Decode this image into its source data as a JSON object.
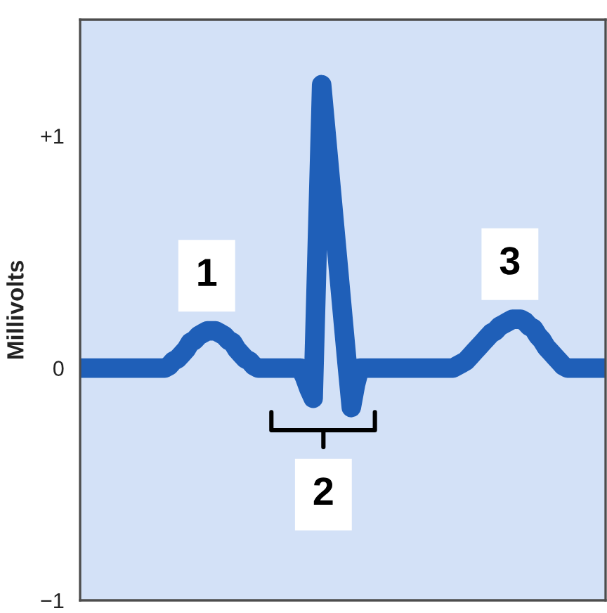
{
  "chart_data": {
    "type": "line",
    "ylabel": "Millivolts",
    "categories": [
      null,
      null,
      null,
      null,
      null,
      null,
      null,
      null,
      null,
      null,
      null,
      null,
      null,
      null,
      null,
      null,
      null,
      null,
      null,
      null,
      null,
      null,
      null,
      null,
      null,
      null,
      null,
      null,
      null,
      null,
      null,
      null,
      null,
      null,
      null,
      null,
      null,
      null,
      null,
      null,
      null,
      null,
      null,
      null,
      null,
      null,
      null,
      null,
      null,
      null,
      null,
      null,
      null,
      null,
      null,
      null,
      null,
      null,
      null,
      null,
      null,
      null,
      null,
      null,
      null,
      null,
      null,
      null,
      null,
      null,
      null,
      null,
      null,
      null,
      null,
      null,
      null,
      null,
      null,
      null,
      null,
      null,
      null,
      null,
      null,
      null,
      null,
      null,
      null,
      null,
      null,
      null,
      null,
      null,
      null,
      null,
      null,
      null,
      null,
      null,
      null,
      null,
      null,
      null,
      null,
      null,
      null,
      null,
      null,
      null,
      null,
      null,
      null,
      null,
      null,
      null,
      null,
      null,
      null,
      null,
      null,
      null,
      null,
      null,
      null
    ],
    "values": [
      0,
      0,
      0,
      0,
      0,
      0,
      0,
      0,
      0,
      0,
      0,
      0,
      0,
      0,
      0,
      0,
      0,
      0,
      0,
      0,
      0,
      0.01,
      0.03,
      0.04,
      0.06,
      0.08,
      0.11,
      0.12,
      0.14,
      0.15,
      0.16,
      0.16,
      0.16,
      0.15,
      0.14,
      0.12,
      0.11,
      0.08,
      0.06,
      0.04,
      0.03,
      0.01,
      0,
      0,
      0,
      0,
      0,
      0,
      0,
      0,
      0,
      0,
      0,
      -0.04,
      -0.09,
      -0.13,
      0.55,
      1.22,
      1.02,
      0.82,
      0.62,
      0.42,
      0.22,
      0.02,
      -0.17,
      -0.07,
      0,
      0,
      0,
      0,
      0,
      0,
      0,
      0,
      0,
      0,
      0,
      0,
      0,
      0,
      0,
      0,
      0,
      0,
      0,
      0,
      0,
      0,
      0,
      0.01,
      0.02,
      0.03,
      0.05,
      0.07,
      0.09,
      0.11,
      0.13,
      0.15,
      0.16,
      0.18,
      0.19,
      0.2,
      0.21,
      0.21,
      0.21,
      0.2,
      0.18,
      0.17,
      0.14,
      0.12,
      0.09,
      0.07,
      0.05,
      0.03,
      0.01,
      0,
      0,
      0,
      0,
      0,
      0,
      0,
      0,
      0,
      0
    ],
    "color": "#1f5fb8",
    "ylim": [
      -1,
      1.5
    ],
    "yticks": [
      {
        "value": 1,
        "label": "+1"
      },
      0,
      {
        "value": -1,
        "label": "−1"
      }
    ],
    "tick_labels": "y",
    "annotations": [
      "1",
      "2",
      "3"
    ]
  }
}
